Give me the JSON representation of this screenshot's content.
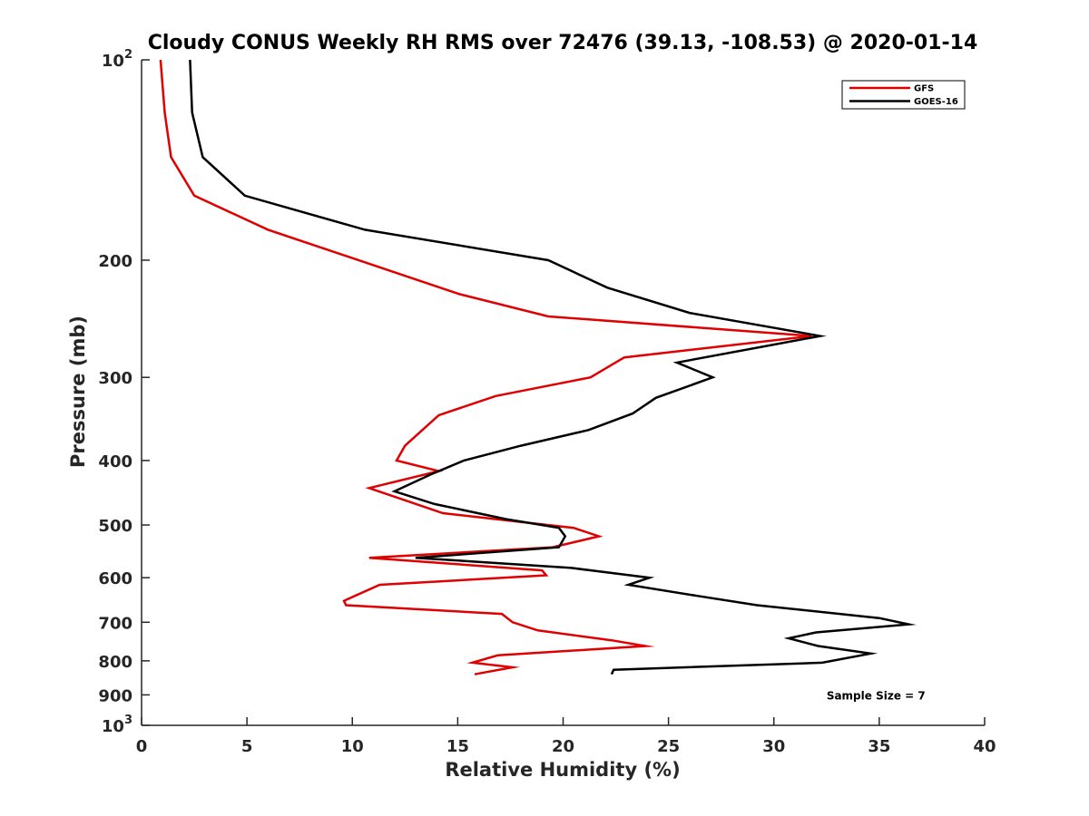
{
  "chart_data": {
    "type": "line",
    "title": "Cloudy CONUS Weekly RH RMS over 72476 (39.13, -108.53) @ 2020-01-14",
    "xlabel": "Relative Humidity (%)",
    "ylabel": "Pressure (mb)",
    "xlim": [
      0,
      40
    ],
    "ylim": [
      100,
      1000
    ],
    "y_scale": "log",
    "y_reversed": true,
    "grid": false,
    "legend_position": "top-right",
    "x_ticks": [
      "0",
      "5",
      "10",
      "15",
      "20",
      "25",
      "30",
      "35",
      "40"
    ],
    "y_ticks": [
      {
        "value": 100,
        "base": "10",
        "exp": "2"
      },
      {
        "value": 200,
        "label": "200"
      },
      {
        "value": 300,
        "label": "300"
      },
      {
        "value": 400,
        "label": "400"
      },
      {
        "value": 500,
        "label": "500"
      },
      {
        "value": 600,
        "label": "600"
      },
      {
        "value": 700,
        "label": "700"
      },
      {
        "value": 800,
        "label": "800"
      },
      {
        "value": 900,
        "label": "900"
      },
      {
        "value": 1000,
        "base": "10",
        "exp": "3"
      }
    ],
    "series": [
      {
        "name": "GFS",
        "color": "#e00000",
        "points": [
          [
            0.9,
            100
          ],
          [
            1.1,
            120
          ],
          [
            1.4,
            140
          ],
          [
            2.5,
            160
          ],
          [
            6.0,
            180
          ],
          [
            11.3,
            205
          ],
          [
            15.1,
            225
          ],
          [
            19.3,
            243
          ],
          [
            31.8,
            260
          ],
          [
            22.9,
            280
          ],
          [
            21.3,
            300
          ],
          [
            16.8,
            320
          ],
          [
            14.1,
            342
          ],
          [
            12.5,
            380
          ],
          [
            12.1,
            400
          ],
          [
            14.1,
            415
          ],
          [
            10.8,
            440
          ],
          [
            14.3,
            480
          ],
          [
            20.5,
            505
          ],
          [
            21.7,
            520
          ],
          [
            19.5,
            540
          ],
          [
            10.8,
            560
          ],
          [
            19.0,
            585
          ],
          [
            19.2,
            595
          ],
          [
            11.3,
            615
          ],
          [
            9.6,
            650
          ],
          [
            9.7,
            660
          ],
          [
            17.1,
            680
          ],
          [
            17.6,
            700
          ],
          [
            18.8,
            720
          ],
          [
            22.3,
            745
          ],
          [
            23.9,
            760
          ],
          [
            16.9,
            785
          ],
          [
            15.7,
            805
          ],
          [
            17.6,
            818
          ],
          [
            15.8,
            838
          ]
        ]
      },
      {
        "name": "GOES-16",
        "color": "#000000",
        "points": [
          [
            2.3,
            100
          ],
          [
            2.4,
            120
          ],
          [
            2.9,
            140
          ],
          [
            4.9,
            160
          ],
          [
            10.6,
            180
          ],
          [
            19.3,
            200
          ],
          [
            22.1,
            220
          ],
          [
            26.0,
            240
          ],
          [
            32.2,
            260
          ],
          [
            25.4,
            285
          ],
          [
            27.1,
            300
          ],
          [
            24.4,
            322
          ],
          [
            23.3,
            340
          ],
          [
            21.2,
            360
          ],
          [
            18.0,
            380
          ],
          [
            15.3,
            400
          ],
          [
            13.7,
            420
          ],
          [
            12.0,
            445
          ],
          [
            13.9,
            465
          ],
          [
            17.3,
            490
          ],
          [
            19.8,
            505
          ],
          [
            20.1,
            520
          ],
          [
            19.8,
            540
          ],
          [
            13.0,
            560
          ],
          [
            20.4,
            580
          ],
          [
            24.1,
            600
          ],
          [
            23.1,
            615
          ],
          [
            26.5,
            640
          ],
          [
            29.2,
            660
          ],
          [
            35.0,
            690
          ],
          [
            36.4,
            705
          ],
          [
            32.0,
            725
          ],
          [
            30.7,
            740
          ],
          [
            32.1,
            760
          ],
          [
            34.6,
            780
          ],
          [
            32.3,
            805
          ],
          [
            22.4,
            825
          ],
          [
            22.3,
            838
          ]
        ]
      }
    ],
    "annotations": [
      {
        "text": "Sample Size = 7",
        "x": 32.5,
        "y": 900
      }
    ]
  }
}
